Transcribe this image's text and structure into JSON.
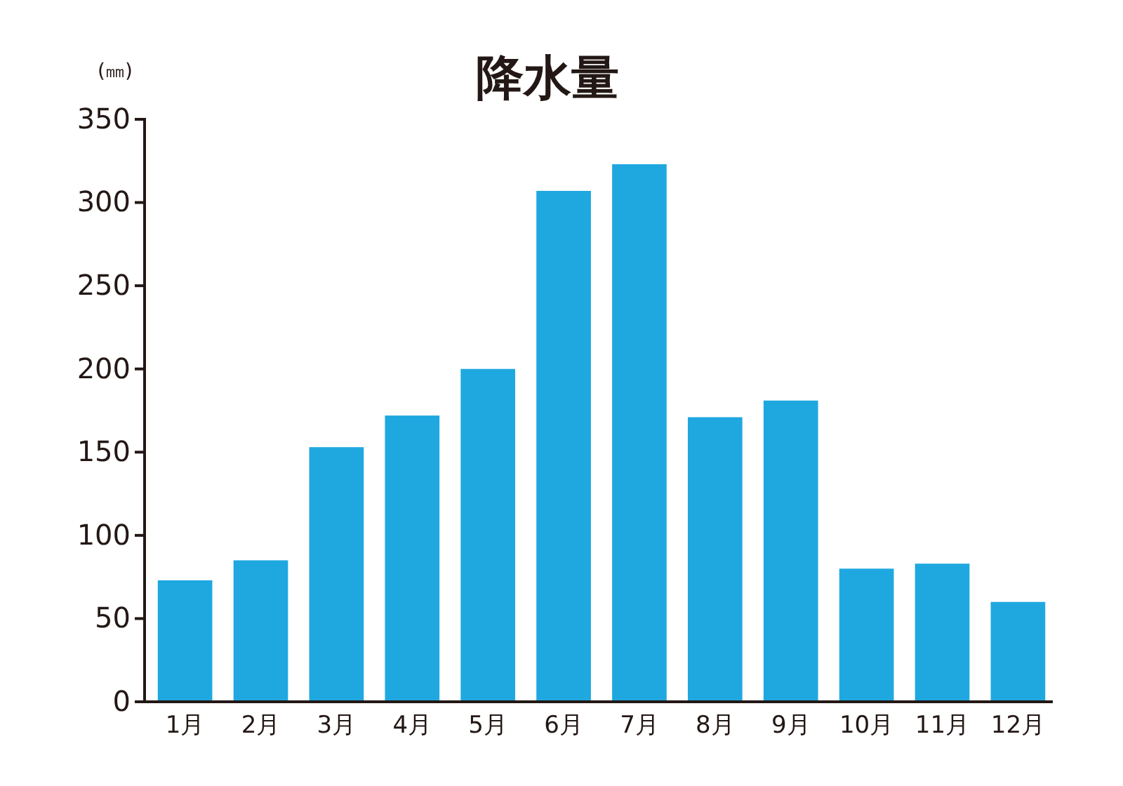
{
  "chart_data": {
    "type": "bar",
    "title": "降水量",
    "ylabel": "(㎜)",
    "categories": [
      "1月",
      "2月",
      "3月",
      "4月",
      "5月",
      "6月",
      "7月",
      "8月",
      "9月",
      "10月",
      "11月",
      "12月"
    ],
    "values": [
      73,
      85,
      153,
      172,
      200,
      307,
      323,
      171,
      181,
      80,
      83,
      60
    ],
    "color": "#1fa8e0",
    "ylim": [
      0,
      350
    ],
    "yticks": [
      0,
      50,
      100,
      150,
      200,
      250,
      300,
      350
    ],
    "grid": false
  }
}
